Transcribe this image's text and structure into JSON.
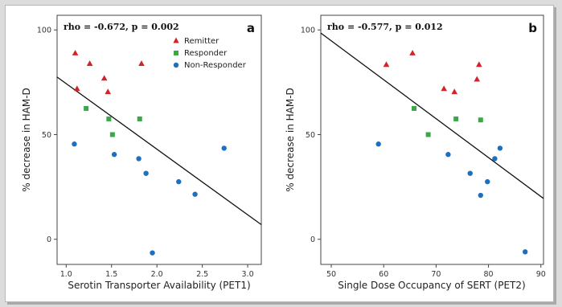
{
  "chart_data": [
    {
      "type": "scatter",
      "panel_letter": "a",
      "annotation": "rho = -0.672, p = 0.002",
      "xlabel": "Serotin Transporter Availability (PET1)",
      "ylabel": "% decrease in HAM-D",
      "xlim": [
        0.9,
        3.15
      ],
      "ylim": [
        -12,
        107
      ],
      "xticks": [
        1.0,
        1.5,
        2.0,
        2.5,
        3.0
      ],
      "xtick_labels": [
        "1.0",
        "1.5",
        "2.0",
        "2.5",
        "3.0"
      ],
      "yticks": [
        0,
        50,
        100
      ],
      "ytick_labels": [
        "0",
        "50",
        "100"
      ],
      "grid": false,
      "legend": {
        "placement": "top-right",
        "entries": [
          {
            "name": "Remitter",
            "marker": "triangle",
            "color": "#d2232a"
          },
          {
            "name": "Responder",
            "marker": "square",
            "color": "#3aa845"
          },
          {
            "name": "Non-Responder",
            "marker": "circle",
            "color": "#1f6fbf"
          }
        ]
      },
      "series": [
        {
          "name": "Remitter",
          "points": [
            [
              1.1,
              89
            ],
            [
              1.12,
              72
            ],
            [
              1.26,
              84
            ],
            [
              1.42,
              77
            ],
            [
              1.46,
              70.5
            ],
            [
              1.83,
              84
            ]
          ]
        },
        {
          "name": "Responder",
          "points": [
            [
              1.22,
              62.5
            ],
            [
              1.47,
              57.5
            ],
            [
              1.51,
              50
            ],
            [
              1.81,
              57.5
            ]
          ]
        },
        {
          "name": "Non-Responder",
          "points": [
            [
              1.09,
              45.5
            ],
            [
              1.53,
              40.5
            ],
            [
              1.8,
              38.5
            ],
            [
              1.88,
              31.5
            ],
            [
              1.95,
              -6.5
            ],
            [
              2.24,
              27.5
            ],
            [
              2.42,
              21.5
            ],
            [
              2.74,
              43.5
            ]
          ]
        }
      ],
      "fit_line": {
        "x": [
          0.9,
          3.15
        ],
        "y": [
          77.5,
          7
        ]
      }
    },
    {
      "type": "scatter",
      "panel_letter": "b",
      "annotation": "rho = -0.577, p = 0.012",
      "xlabel": "Single Dose Occupancy of SERT (PET2)",
      "ylabel": "% decrease in HAM-D",
      "xlim": [
        48,
        90.5
      ],
      "ylim": [
        -12,
        107
      ],
      "xticks": [
        50,
        60,
        70,
        80,
        90
      ],
      "xtick_labels": [
        "50",
        "60",
        "70",
        "80",
        "90"
      ],
      "yticks": [
        0,
        50,
        100
      ],
      "ytick_labels": [
        "0",
        "50",
        "100"
      ],
      "grid": false,
      "series": [
        {
          "name": "Remitter",
          "points": [
            [
              60.5,
              83.5
            ],
            [
              65.5,
              89
            ],
            [
              71.5,
              72
            ],
            [
              73.5,
              70.5
            ],
            [
              77.8,
              76.5
            ],
            [
              78.2,
              83.5
            ]
          ]
        },
        {
          "name": "Responder",
          "points": [
            [
              65.8,
              62.5
            ],
            [
              68.5,
              50
            ],
            [
              73.8,
              57.5
            ],
            [
              78.5,
              57
            ]
          ]
        },
        {
          "name": "Non-Responder",
          "points": [
            [
              59,
              45.5
            ],
            [
              72.3,
              40.5
            ],
            [
              76.5,
              31.5
            ],
            [
              78.5,
              21
            ],
            [
              79.8,
              27.5
            ],
            [
              81.2,
              38.5
            ],
            [
              82.2,
              43.5
            ],
            [
              87,
              -6
            ]
          ]
        }
      ],
      "fit_line": {
        "x": [
          48,
          90.5
        ],
        "y": [
          98.5,
          19.5
        ]
      }
    }
  ]
}
